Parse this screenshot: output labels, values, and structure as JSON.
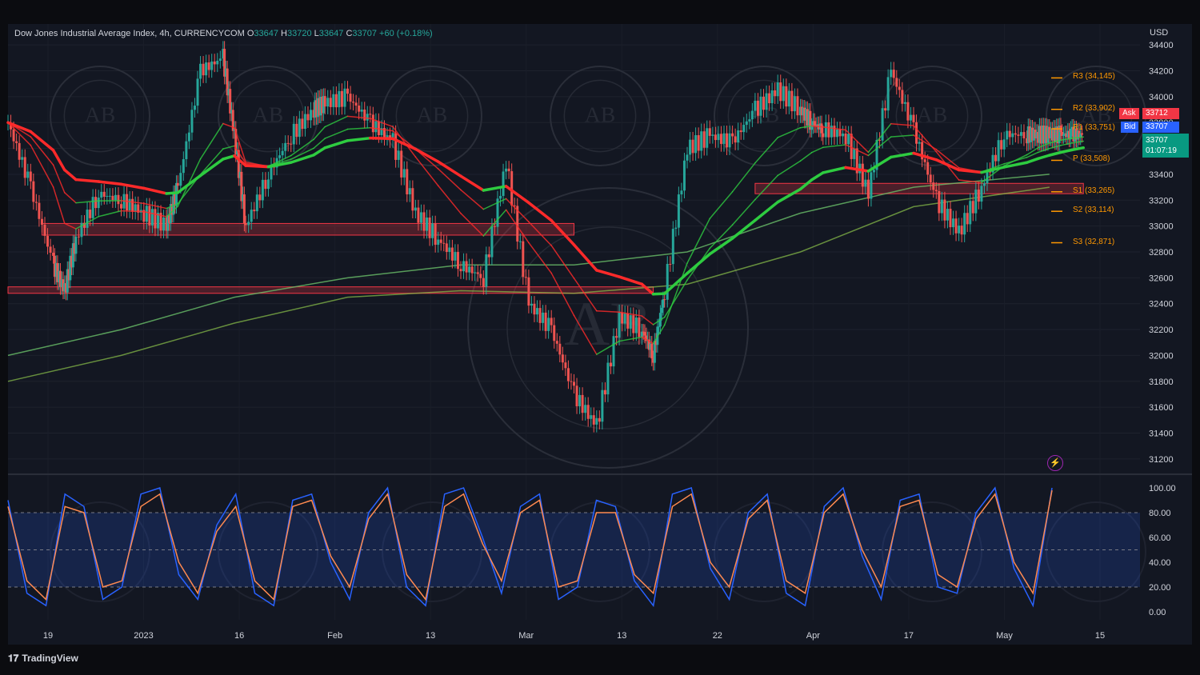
{
  "header": {
    "symbol": "Dow Jones Industrial Average Index, 4h, CURRENCYCOM",
    "o_label": "O",
    "o": "33647",
    "h_label": "H",
    "h": "33720",
    "l_label": "L",
    "l": "33647",
    "c_label": "C",
    "c": "33707",
    "change": "+60 (+0.18%)"
  },
  "currency": "USD",
  "quote": {
    "ask_label": "Ask",
    "ask": "33712",
    "bid_label": "Bid",
    "bid": "33707",
    "last": "33707",
    "countdown": "01:07:19"
  },
  "pivots": [
    {
      "label": "R3 (34,145)",
      "value": 34145
    },
    {
      "label": "R2 (33,902)",
      "value": 33902
    },
    {
      "label": "R1 (33,751)",
      "value": 33751
    },
    {
      "label": "P (33,508)",
      "value": 33508
    },
    {
      "label": "S1 (33,265)",
      "value": 33265
    },
    {
      "label": "S2 (33,114)",
      "value": 33114
    },
    {
      "label": "S3 (32,871)",
      "value": 32871
    }
  ],
  "brand": "TradingView",
  "colors": {
    "up": "#26a69a",
    "down": "#ef5350",
    "ema_up": "#2ecc40",
    "ema_down": "#ff2a2a",
    "stoch_k": "#2962ff",
    "stoch_d": "#ff8a50",
    "zone": "#f23645",
    "pivot": "#ff9800"
  },
  "chart_data": {
    "type": "line",
    "price_axis": {
      "ticks": [
        34400,
        34200,
        34000,
        33800,
        33600,
        33400,
        33200,
        33000,
        32800,
        32600,
        32400,
        32200,
        32000,
        31800,
        31600,
        31400,
        31200
      ],
      "tick_labels": [
        "34400",
        "34200",
        "34000",
        "33800",
        "33600",
        "33400",
        "33200",
        "33000",
        "32800",
        "32600",
        "32400",
        "32200",
        "32000",
        "31800",
        "31600",
        "31400",
        "31200"
      ],
      "ylim": [
        31100,
        34500
      ]
    },
    "time_axis": {
      "labels": [
        "19",
        "2023",
        "16",
        "Feb",
        "13",
        "Mar",
        "13",
        "22",
        "Apr",
        "17",
        "May",
        "15"
      ],
      "xlim": [
        0,
        100
      ]
    },
    "price_series": {
      "name": "",
      "x": [
        0,
        2,
        4,
        5,
        6,
        8,
        10,
        12,
        14,
        15,
        17,
        19,
        20,
        21,
        23,
        25,
        27,
        28,
        30,
        32,
        34,
        36,
        38,
        40,
        42,
        44,
        46,
        48,
        50,
        52,
        54,
        56,
        57,
        58,
        60,
        62,
        64,
        66,
        68,
        70,
        71,
        72,
        74,
        76,
        78,
        80,
        82,
        84,
        86,
        88,
        90,
        91,
        92,
        93,
        94,
        95
      ],
      "y": [
        33800,
        33300,
        32700,
        32500,
        32900,
        33250,
        33200,
        33100,
        33000,
        33300,
        34200,
        34300,
        33700,
        33000,
        33400,
        33700,
        33900,
        33950,
        34000,
        33800,
        33650,
        33100,
        32900,
        32700,
        32600,
        33500,
        32400,
        32200,
        31700,
        31450,
        32300,
        32200,
        32000,
        32500,
        33600,
        33700,
        33650,
        33900,
        34050,
        33900,
        33800,
        33750,
        33700,
        33250,
        34200,
        33750,
        33200,
        32950,
        33300,
        33707,
        33707,
        33707,
        33707,
        33707,
        33707,
        33707
      ]
    },
    "sma_long": {
      "x": [
        0,
        10,
        20,
        30,
        40,
        50,
        60,
        70,
        80,
        92
      ],
      "y": [
        32000,
        32200,
        32450,
        32600,
        32700,
        32700,
        32800,
        33100,
        33300,
        33400
      ]
    },
    "sma_longer": {
      "x": [
        0,
        10,
        20,
        30,
        40,
        50,
        60,
        70,
        80,
        92
      ],
      "y": [
        31800,
        32000,
        32250,
        32450,
        32500,
        32480,
        32550,
        32800,
        33150,
        33300
      ]
    },
    "zones": [
      {
        "from": 32930,
        "to": 33020,
        "x0": 3,
        "x1": 50
      },
      {
        "from": 32480,
        "to": 32530,
        "x0": 0,
        "x1": 57
      },
      {
        "from": 33250,
        "to": 33330,
        "x0": 66,
        "x1": 95
      }
    ],
    "stochastic": {
      "ticks": [
        100,
        80,
        60,
        40,
        20,
        0
      ],
      "tick_labels": [
        "100.00",
        "80.00",
        "60.00",
        "40.00",
        "20.00",
        "0.00"
      ],
      "bands": [
        20,
        80
      ],
      "k": [
        90,
        15,
        5,
        95,
        85,
        10,
        20,
        95,
        100,
        30,
        10,
        70,
        95,
        15,
        5,
        90,
        95,
        40,
        10,
        80,
        100,
        20,
        5,
        95,
        100,
        60,
        15,
        85,
        95,
        10,
        20,
        90,
        85,
        25,
        5,
        95,
        100,
        35,
        10,
        80,
        95,
        15,
        5,
        85,
        100,
        45,
        10,
        90,
        95,
        20,
        15,
        80,
        100,
        35,
        5,
        100
      ],
      "d": [
        85,
        25,
        10,
        85,
        80,
        20,
        25,
        85,
        95,
        40,
        15,
        65,
        85,
        25,
        10,
        85,
        90,
        45,
        20,
        75,
        95,
        30,
        10,
        85,
        95,
        55,
        25,
        80,
        90,
        20,
        25,
        80,
        80,
        30,
        15,
        85,
        95,
        40,
        20,
        75,
        90,
        25,
        15,
        80,
        95,
        50,
        20,
        85,
        90,
        30,
        20,
        75,
        95,
        40,
        15,
        98
      ]
    }
  }
}
